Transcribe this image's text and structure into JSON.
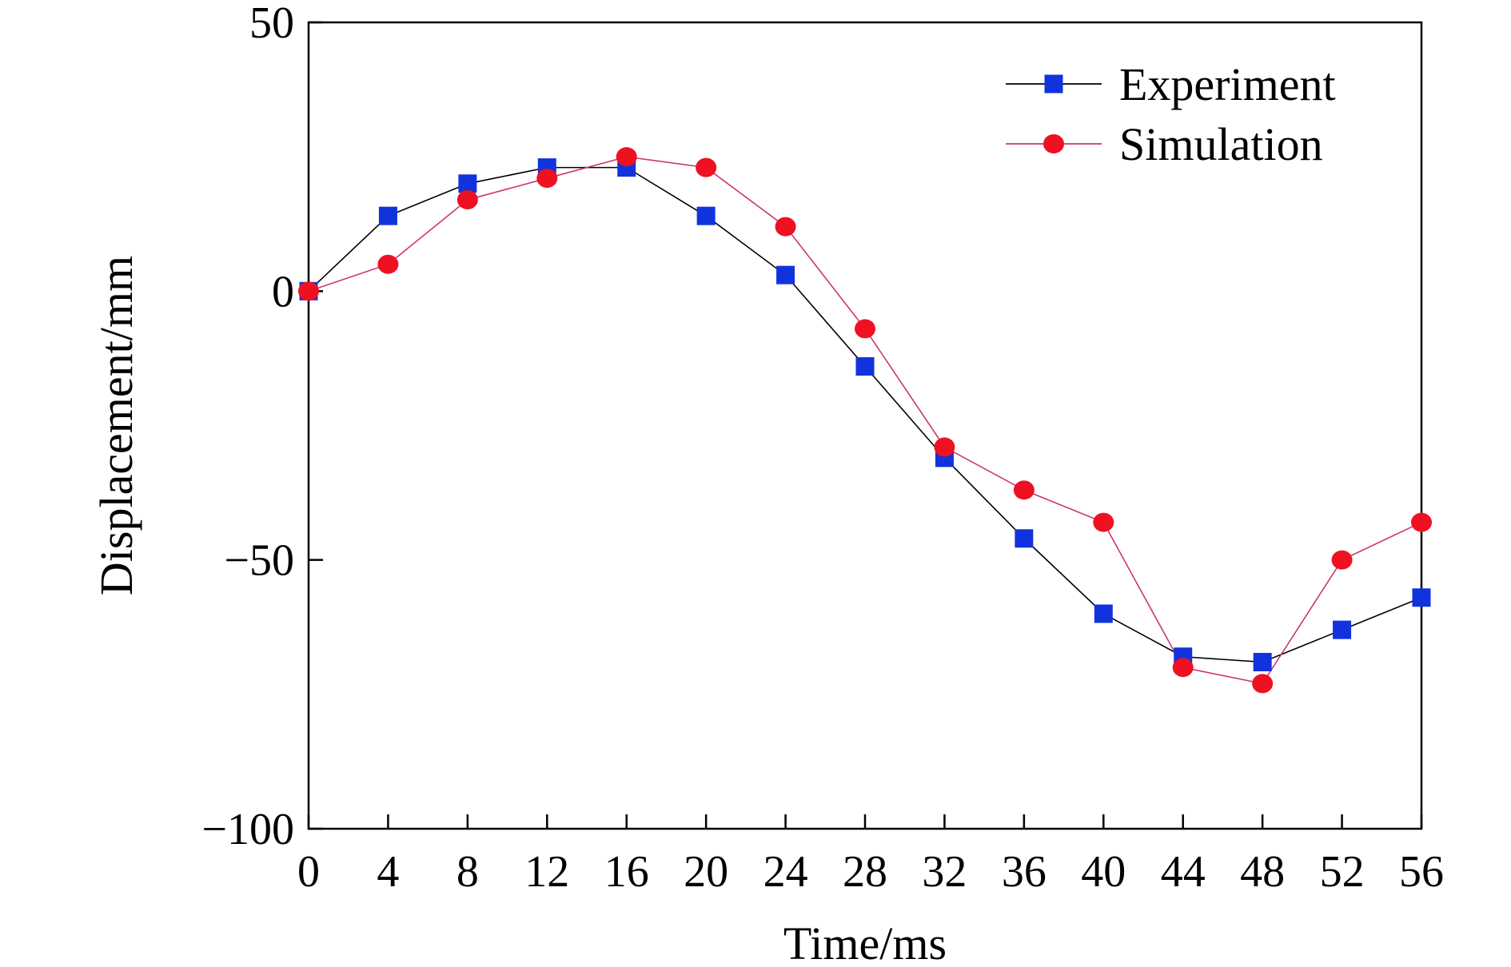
{
  "chart_data": {
    "type": "line",
    "title": "",
    "xlabel": "Time/ms",
    "ylabel": "Displacement/mm",
    "xlim": [
      0,
      56
    ],
    "ylim": [
      -100,
      50
    ],
    "xticks": [
      0,
      4,
      8,
      12,
      16,
      20,
      24,
      28,
      32,
      36,
      40,
      44,
      48,
      52,
      56
    ],
    "yticks": [
      50,
      0,
      -50,
      -100
    ],
    "ytick_labels": [
      "50",
      "0",
      "−50",
      "−100"
    ],
    "grid": false,
    "legend_position": "top-right",
    "x": [
      0,
      4,
      8,
      12,
      16,
      20,
      24,
      28,
      32,
      36,
      40,
      44,
      48,
      52,
      56
    ],
    "series": [
      {
        "name": "Experiment",
        "marker": "square",
        "marker_color": "#1133dd",
        "line_color": "#000000",
        "values": [
          0,
          14,
          20,
          23,
          23,
          14,
          3,
          -14,
          -31,
          -46,
          -60,
          -68,
          -69,
          -63,
          -57
        ]
      },
      {
        "name": "Simulation",
        "marker": "circle",
        "marker_color": "#ee1122",
        "line_color": "#cc3377",
        "values": [
          0,
          5,
          17,
          21,
          25,
          23,
          12,
          -7,
          -29,
          -37,
          -43,
          -70,
          -73,
          -50,
          -43
        ]
      }
    ]
  }
}
